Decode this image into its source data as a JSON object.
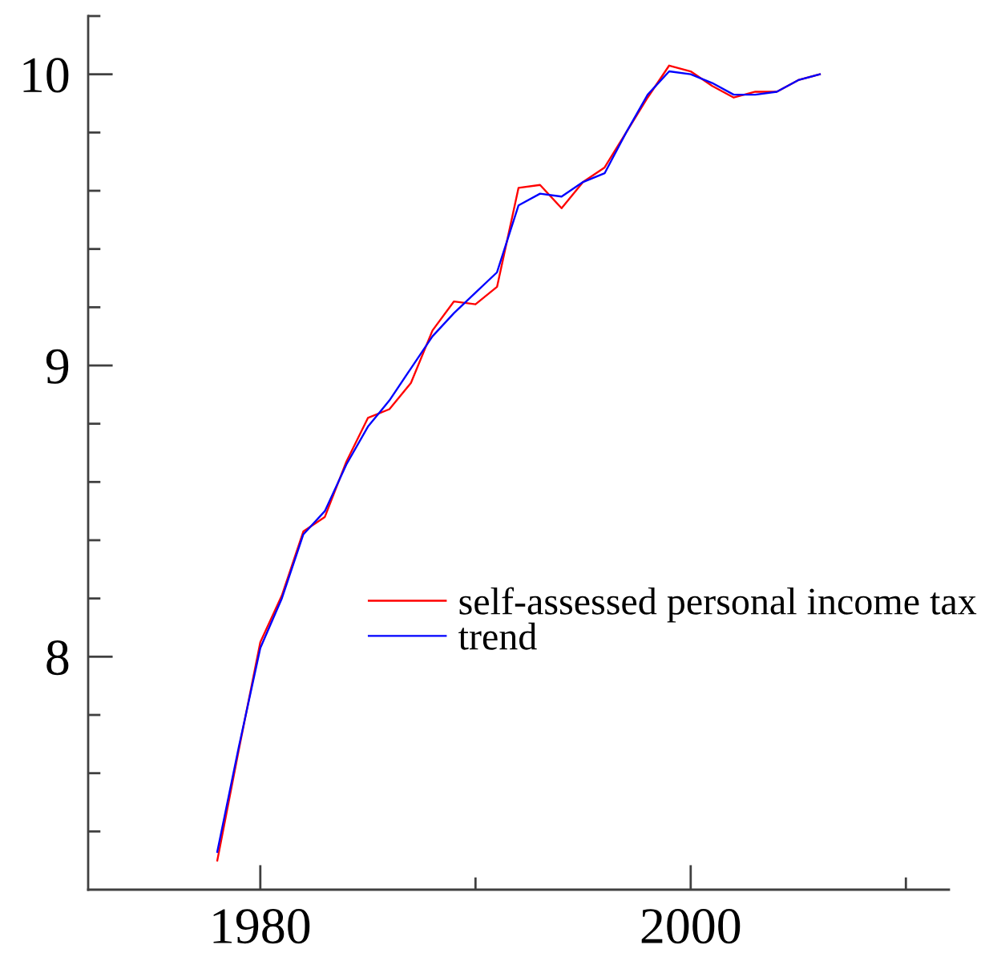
{
  "chart_data": {
    "type": "line",
    "x": [
      1978,
      1979,
      1980,
      1981,
      1982,
      1983,
      1984,
      1985,
      1986,
      1987,
      1988,
      1989,
      1990,
      1991,
      1992,
      1993,
      1994,
      1995,
      1996,
      1997,
      1998,
      1999,
      2000,
      2001,
      2002,
      2003,
      2004,
      2005,
      2006
    ],
    "series": [
      {
        "name": "self-assessed personal income tax",
        "color": "#ff0000",
        "values": [
          7.3,
          7.68,
          8.05,
          8.21,
          8.43,
          8.48,
          8.67,
          8.82,
          8.85,
          8.94,
          9.12,
          9.22,
          9.21,
          9.27,
          9.61,
          9.62,
          9.54,
          9.63,
          9.68,
          9.8,
          9.92,
          10.03,
          10.01,
          9.96,
          9.92,
          9.94,
          9.94,
          9.98,
          10.0
        ]
      },
      {
        "name": "trend",
        "color": "#0000ff",
        "values": [
          7.33,
          7.69,
          8.03,
          8.2,
          8.42,
          8.5,
          8.66,
          8.79,
          8.88,
          8.99,
          9.1,
          9.18,
          9.25,
          9.32,
          9.55,
          9.59,
          9.58,
          9.63,
          9.66,
          9.8,
          9.93,
          10.01,
          10.0,
          9.97,
          9.93,
          9.93,
          9.94,
          9.98,
          10.0
        ]
      }
    ],
    "xlim": [
      1972,
      2012
    ],
    "xticks": [
      1980,
      {
        "value": 1990,
        "label": null
      },
      2000,
      {
        "value": 2010,
        "label": null
      }
    ],
    "ylim": [
      7.2,
      10.2
    ],
    "yticks": [
      {
        "value": 7.4,
        "label": null
      },
      {
        "value": 7.6,
        "label": null
      },
      {
        "value": 7.8,
        "label": null
      },
      8,
      {
        "value": 8.2,
        "label": null
      },
      {
        "value": 8.4,
        "label": null
      },
      {
        "value": 8.6,
        "label": null
      },
      {
        "value": 8.8,
        "label": null
      },
      9,
      {
        "value": 9.2,
        "label": null
      },
      {
        "value": 9.4,
        "label": null
      },
      {
        "value": 9.6,
        "label": null
      },
      {
        "value": 9.8,
        "label": null
      },
      10,
      {
        "value": 10.2,
        "label": null
      }
    ],
    "legend": "right",
    "line_style": "solid"
  }
}
